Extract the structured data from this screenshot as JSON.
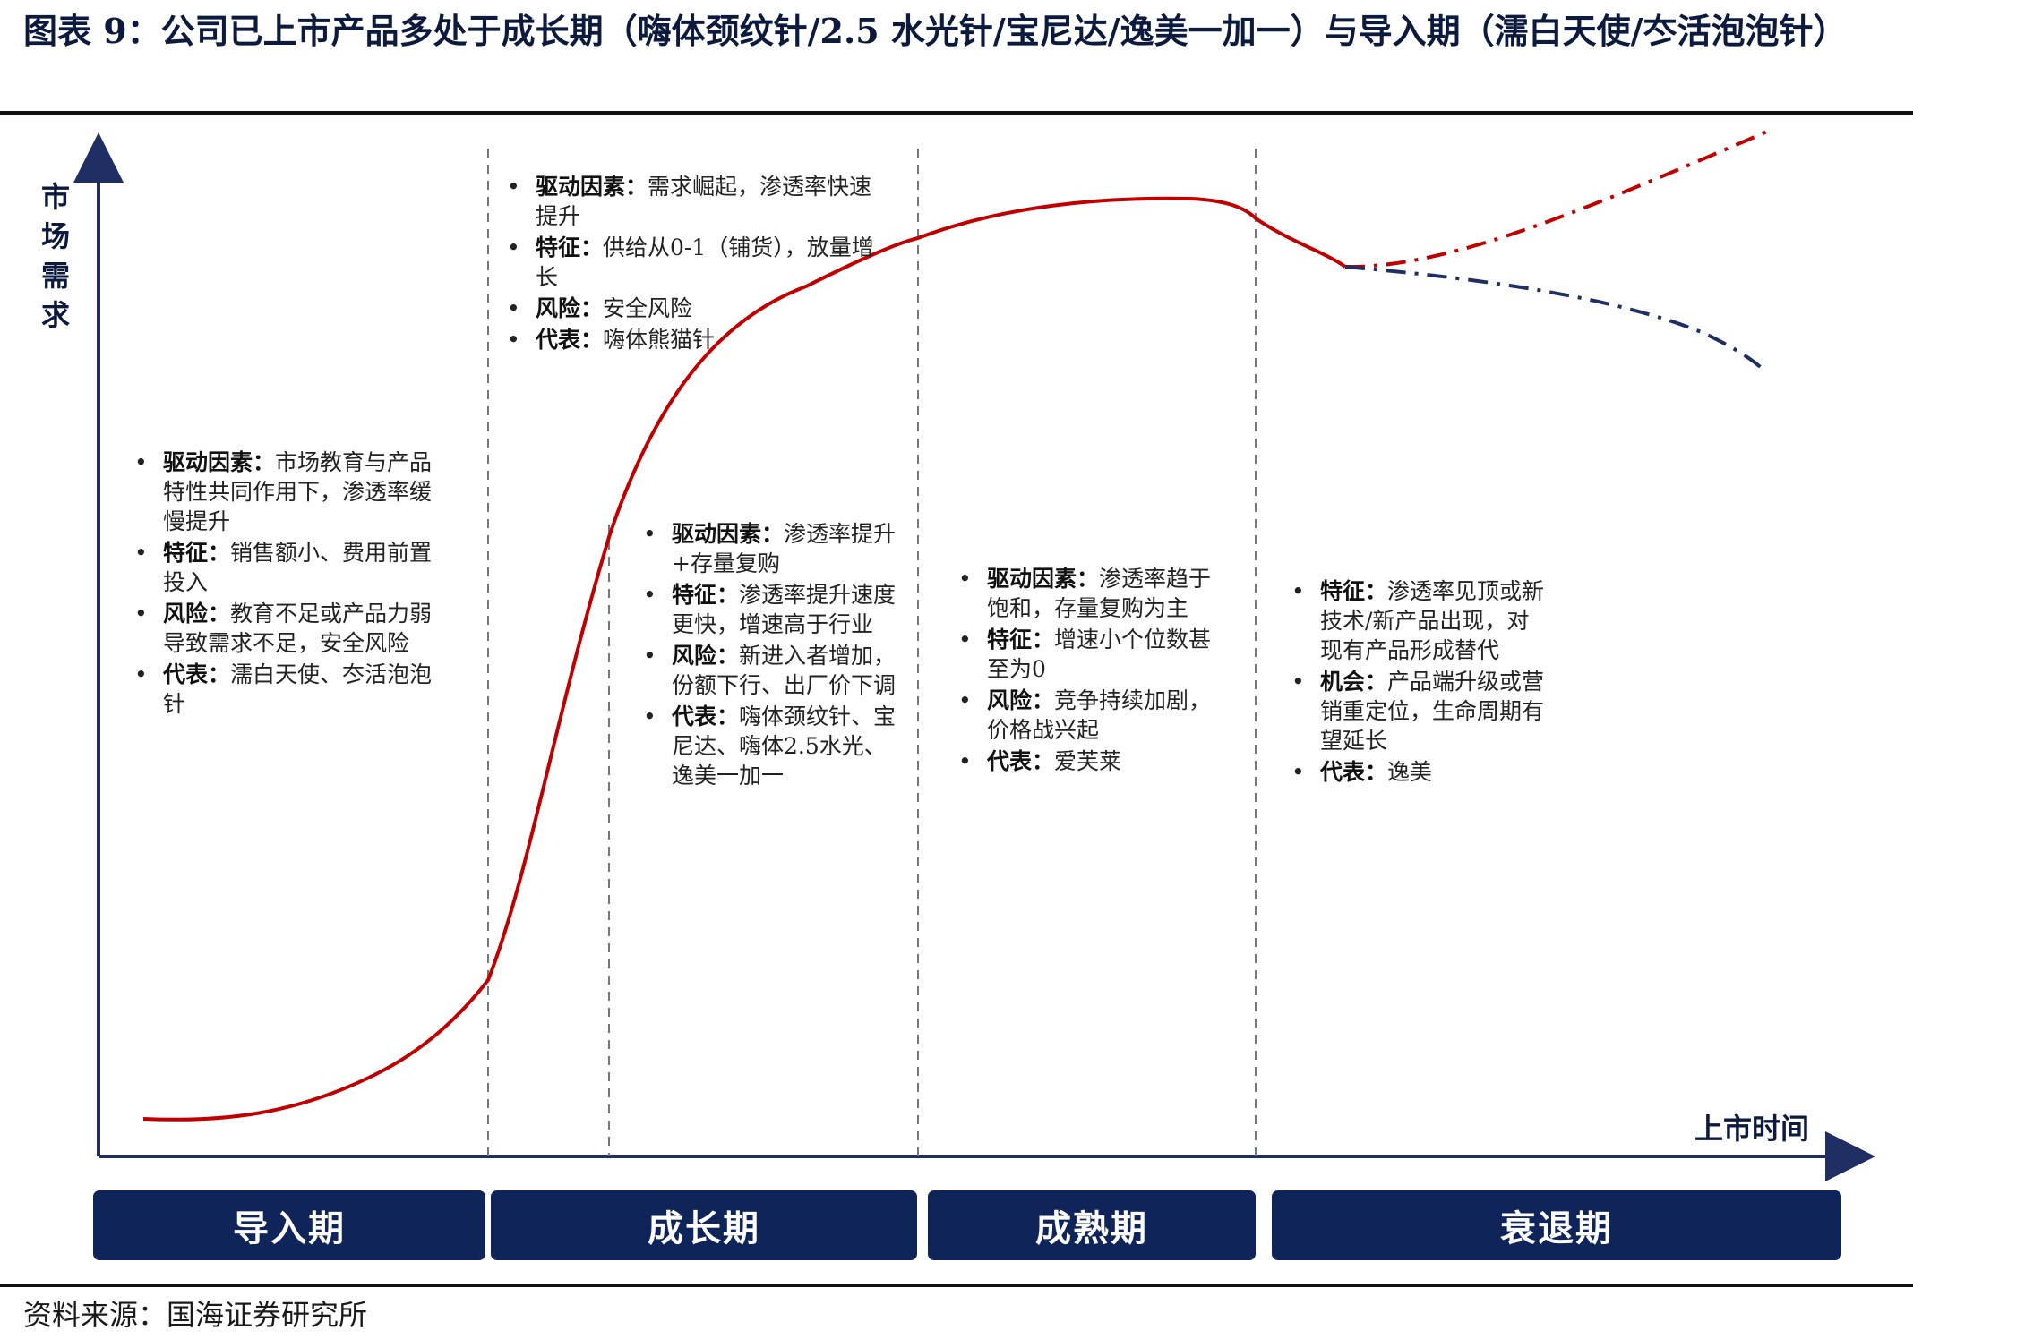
{
  "figure": {
    "title": "图表 9：公司已上市产品多处于成长期（嗨体颈纹针/2.5 水光针/宝尼达/逸美一加一）与导入期（濡白天使/冭活泡泡针）",
    "source": "资料来源：国海证券研究所"
  },
  "axes": {
    "y_label": "市场需求",
    "x_label": "上市时间"
  },
  "stages": [
    {
      "label": "导入期"
    },
    {
      "label": "成长期"
    },
    {
      "label": "成熟期"
    },
    {
      "label": "衰退期"
    }
  ],
  "notes": {
    "intro": [
      {
        "key": "驱动因素：",
        "text": "市场教育与产品特性共同作用下，渗透率缓慢提升"
      },
      {
        "key": "特征：",
        "text": "销售额小、费用前置投入"
      },
      {
        "key": "风险：",
        "text": "教育不足或产品力弱导致需求不足，安全风险"
      },
      {
        "key": "代表：",
        "text": "濡白天使、冭活泡泡针"
      }
    ],
    "growth_early": [
      {
        "key": "驱动因素：",
        "text": "需求崛起，渗透率快速提升"
      },
      {
        "key": "特征：",
        "text": "供给从0-1（铺货），放量增长"
      },
      {
        "key": "风险：",
        "text": "安全风险"
      },
      {
        "key": "代表：",
        "text": "嗨体熊猫针"
      }
    ],
    "growth_late": [
      {
        "key": "驱动因素：",
        "text": "渗透率提升+存量复购"
      },
      {
        "key": "特征：",
        "text": "渗透率提升速度更快，增速高于行业"
      },
      {
        "key": "风险：",
        "text": "新进入者增加，份额下行、出厂价下调"
      },
      {
        "key": "代表：",
        "text": "嗨体颈纹针、宝尼达、嗨体2.5水光、逸美一加一"
      }
    ],
    "maturity": [
      {
        "key": "驱动因素：",
        "text": "渗透率趋于饱和，存量复购为主"
      },
      {
        "key": "特征：",
        "text": "增速小个位数甚至为0"
      },
      {
        "key": "风险：",
        "text": "竞争持续加剧，价格战兴起"
      },
      {
        "key": "代表：",
        "text": "爱芙莱"
      }
    ],
    "decline": [
      {
        "key": "特征：",
        "text": "渗透率见顶或新技术/新产品出现，对现有产品形成替代"
      },
      {
        "key": "机会：",
        "text": "产品端升级或营销重定位，生命周期有望延长"
      },
      {
        "key": "代表：",
        "text": "逸美"
      }
    ]
  },
  "colors": {
    "curve": "#c00000",
    "decline_branch": "#1f2f63",
    "axis": "#1f2f63",
    "stage_box": "#0f2459"
  }
}
